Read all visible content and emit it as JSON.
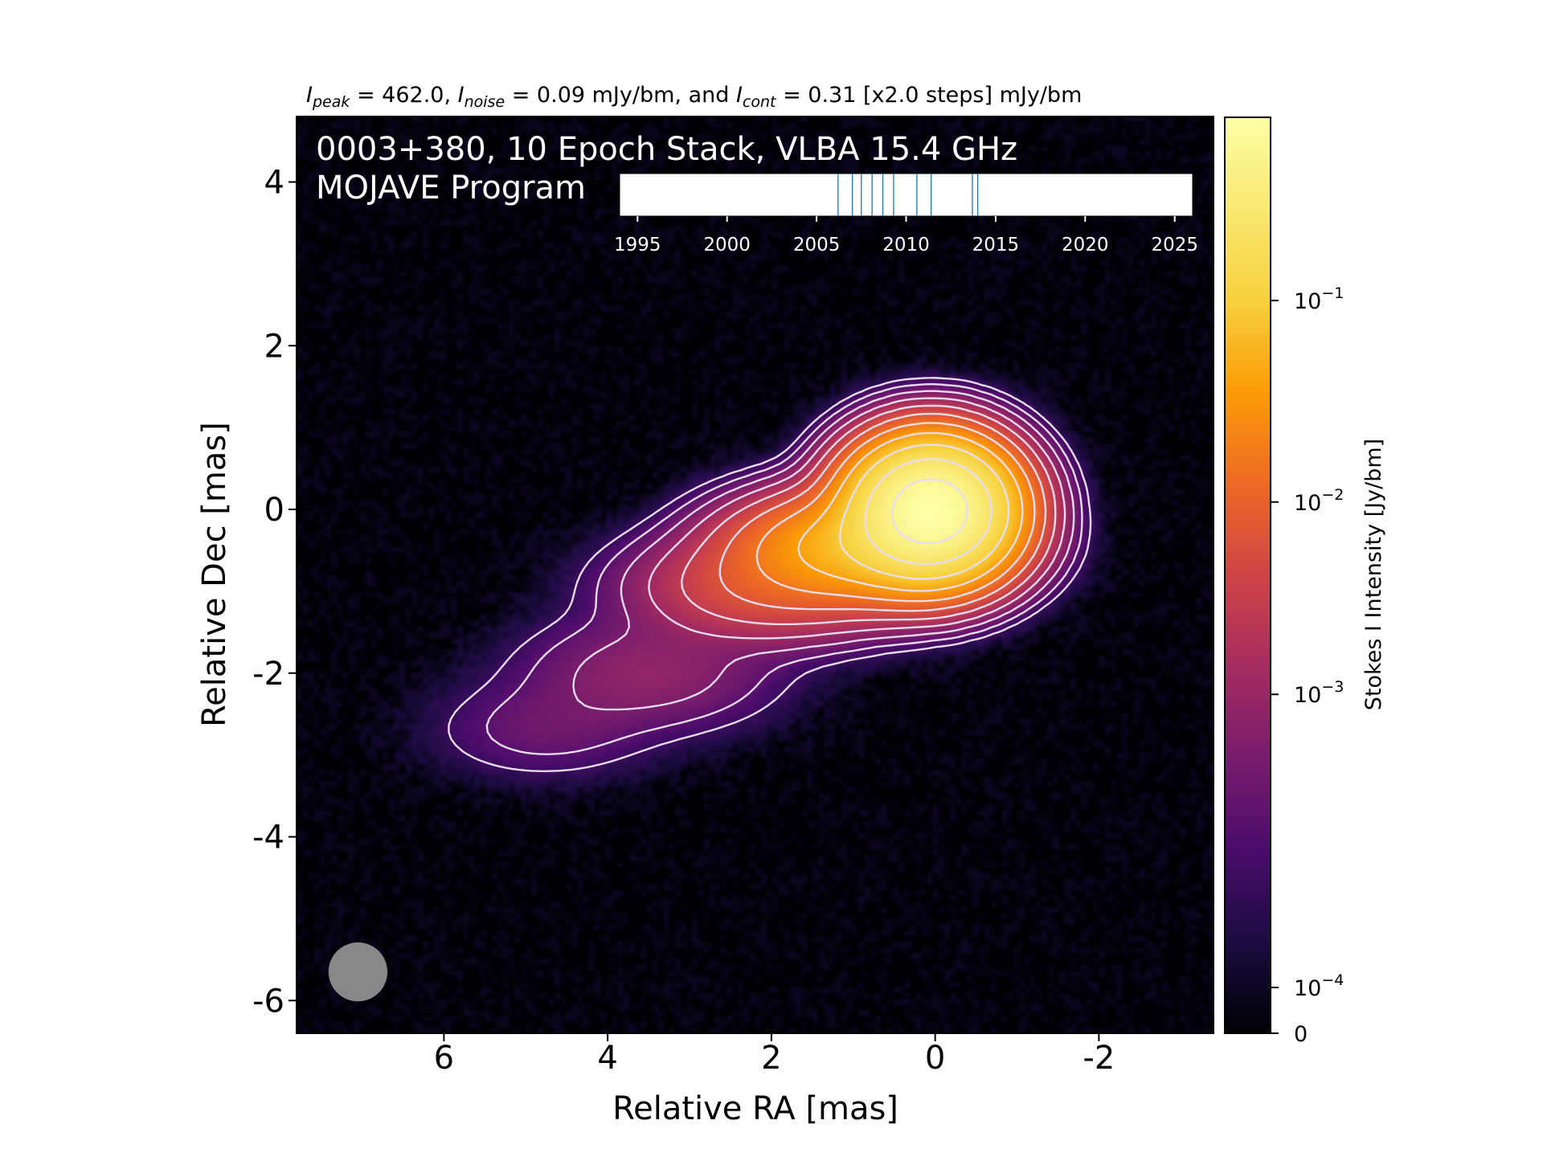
{
  "chart_data": {
    "type": "heatmap",
    "header": {
      "peak_sym": "I",
      "peak_sub": "peak",
      "peak_text": " = 462.0, ",
      "noise_sym": "I",
      "noise_sub": "noise",
      "noise_text": " = 0.09 mJy/bm, and ",
      "cont_sym": "I",
      "cont_sub": "cont",
      "cont_text": " = 0.31 [x2.0 steps] mJy/bm"
    },
    "title_line1": "0003+380, 10 Epoch Stack, VLBA 15.4 GHz",
    "title_line2": "MOJAVE Program",
    "xlabel": "Relative RA [mas]",
    "ylabel": "Relative Dec [mas]",
    "xlim": [
      7.8,
      -3.4
    ],
    "ylim": [
      -6.4,
      4.8
    ],
    "xticks": [
      {
        "v": 6,
        "label": "6"
      },
      {
        "v": 4,
        "label": "4"
      },
      {
        "v": 2,
        "label": "2"
      },
      {
        "v": 0,
        "label": "0"
      },
      {
        "v": -2,
        "label": "-2"
      }
    ],
    "yticks": [
      {
        "v": 4,
        "label": "4"
      },
      {
        "v": 2,
        "label": "2"
      },
      {
        "v": 0,
        "label": "0"
      },
      {
        "v": -2,
        "label": "-2"
      },
      {
        "v": -4,
        "label": "-4"
      },
      {
        "v": -6,
        "label": "-6"
      }
    ],
    "colorbar": {
      "label": "Stokes I Intensity [Jy/bm]",
      "scale": "symlog",
      "colormap": "inferno",
      "ticks": [
        {
          "frac": 0.8,
          "base": "10",
          "exp": "−1"
        },
        {
          "frac": 0.58,
          "base": "10",
          "exp": "−2"
        },
        {
          "frac": 0.37,
          "base": "10",
          "exp": "−3"
        },
        {
          "frac": 0.05,
          "base": "10",
          "exp": "−4"
        },
        {
          "frac": 0.0,
          "base": "0",
          "exp": ""
        }
      ]
    },
    "beam": {
      "x": 7.05,
      "y": -5.65,
      "diameter_mas": 0.72,
      "color": "#888888"
    },
    "epoch_timeline": {
      "xlim": [
        1994,
        2026
      ],
      "ticks": [
        1995,
        2000,
        2005,
        2010,
        2015,
        2020,
        2025
      ],
      "epochs": [
        2006.2,
        2007.0,
        2007.5,
        2008.1,
        2008.7,
        2009.3,
        2010.6,
        2011.4,
        2013.7,
        2014.0
      ],
      "line_color": "#1f77b4"
    },
    "components": [
      {
        "x": 0.05,
        "y": 0.0,
        "sx": 0.5,
        "sy": 0.42,
        "amp": 1.0
      },
      {
        "x": 0.9,
        "y": -0.45,
        "sx": 0.8,
        "sy": 0.35,
        "amp": 0.12
      },
      {
        "x": 2.0,
        "y": -0.95,
        "sx": 0.9,
        "sy": 0.36,
        "amp": 0.02
      },
      {
        "x": 3.5,
        "y": -2.0,
        "sx": 0.9,
        "sy": 0.4,
        "amp": 0.004
      },
      {
        "x": 4.8,
        "y": -2.7,
        "sx": 0.8,
        "sy": 0.35,
        "amp": 0.0018
      }
    ],
    "contour_levels_mjy": [
      0.31,
      0.62,
      1.24,
      2.48,
      4.96,
      9.92,
      19.84,
      39.68,
      79.36,
      158.72,
      317.44
    ],
    "contour_color": "#e8dcf0"
  }
}
